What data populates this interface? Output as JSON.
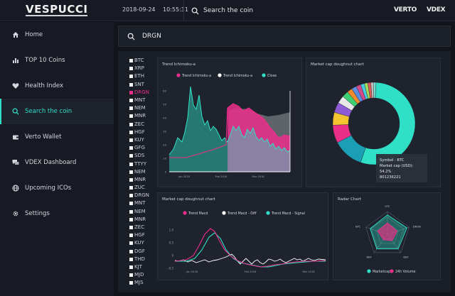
{
  "header": {
    "logo": "VESPUCCI",
    "date": "2018-09-24",
    "time": "10:55:31",
    "search_label": "Search the coin",
    "brands": [
      "VERTO",
      "VDEX"
    ]
  },
  "sidebar": {
    "items": [
      {
        "label": "Home",
        "icon": "home-icon",
        "active": false
      },
      {
        "label": "TOP 10 Coins",
        "icon": "bar-chart-icon",
        "active": false
      },
      {
        "label": "Health Index",
        "icon": "heart-icon",
        "active": false
      },
      {
        "label": "Search the coin",
        "icon": "search-icon",
        "active": true
      },
      {
        "label": "Verto Wallet",
        "icon": "wallet-icon",
        "active": false
      },
      {
        "label": "VDEX Dashboard",
        "icon": "chat-icon",
        "active": false
      },
      {
        "label": "Upcoming ICOs",
        "icon": "globe-icon",
        "active": false
      },
      {
        "label": "Settings",
        "icon": "gear-icon",
        "active": false
      }
    ]
  },
  "search": {
    "value": "DRGN"
  },
  "coins": [
    "BTC",
    "XRP",
    "ETH",
    "SNT",
    "DRGN",
    "MNT",
    "NEM",
    "MNR",
    "ZEC",
    "HGF",
    "KUY",
    "GFG",
    "SDS",
    "TTYY",
    "NEM",
    "MNR",
    "ZUC",
    "DRGN",
    "MNT",
    "NEM",
    "MNR",
    "ZEC",
    "HGF",
    "KUY",
    "DGF",
    "THD",
    "KJT",
    "MJD",
    "MJS"
  ],
  "selected_coin": "DRGN",
  "colors": {
    "accent": "#2fe0c7",
    "pink": "#ec2e8b",
    "white": "#ffffff",
    "bg": "#11141b",
    "panel": "#1f232d"
  },
  "panels": {
    "ichimoku": {
      "title": "Trend Ichimoku-a",
      "legend": [
        "Trend Ichimoku-a",
        "Trend Ichimoku-a",
        "Close"
      ],
      "legend_colors": [
        "#ec2e8b",
        "#ffffff",
        "#2fe0c7"
      ],
      "y_ticks": [
        "60",
        "50",
        "40",
        "30",
        "20",
        "10",
        "0"
      ],
      "x_ticks": [
        "Jan 2018",
        "Feb 2018",
        "Mar 2018"
      ]
    },
    "doughnut": {
      "title": "Market cap doughnut chart",
      "tooltip": {
        "symbol": "Symbol : BTC",
        "cap_label": "Market cap (USD):",
        "pct": "54.2%",
        "value": "801236221"
      },
      "slices": [
        {
          "value": 54.2,
          "color": "#2fe0c7"
        },
        {
          "value": 12,
          "color": "#1a9fb5"
        },
        {
          "value": 7,
          "color": "#ec2e8b"
        },
        {
          "value": 5,
          "color": "#f4c430"
        },
        {
          "value": 4,
          "color": "#8d5ad6"
        },
        {
          "value": 3,
          "color": "#e8e8e8"
        },
        {
          "value": 2.5,
          "color": "#3cd070"
        },
        {
          "value": 2,
          "color": "#f48c2e"
        },
        {
          "value": 2,
          "color": "#5a8de0"
        },
        {
          "value": 1.8,
          "color": "#d64a8a"
        },
        {
          "value": 1.5,
          "color": "#48c9e0"
        },
        {
          "value": 1.3,
          "color": "#a0e05a"
        },
        {
          "value": 1.2,
          "color": "#e05a5a"
        },
        {
          "value": 1,
          "color": "#c0c0c0"
        },
        {
          "value": 1,
          "color": "#7ae0d0"
        }
      ]
    },
    "macd": {
      "title": "Market cap doughnut chart",
      "legend": [
        "Trend Macd",
        "Trend Macd - Diff",
        "Trend Macd - Signal"
      ],
      "legend_colors": [
        "#ec2e8b",
        "#ffffff",
        "#2fe0c7"
      ],
      "y_ticks": [
        "1.0",
        "0.5",
        "0",
        "-0.5"
      ],
      "x_ticks": [
        "Jan 2018",
        "Feb 2018",
        "Mar 2018"
      ]
    },
    "radar": {
      "title": "Radar Chart",
      "axes": [
        "VTC",
        "DRGN",
        "DEF",
        "DEF",
        "BTC"
      ],
      "legend": [
        "Marketcap",
        "24h Volume"
      ],
      "legend_colors": [
        "#2fe0c7",
        "#ec2e8b"
      ],
      "series_a": [
        0.85,
        0.9,
        0.8,
        0.8,
        0.8
      ],
      "series_b": [
        0.5,
        0.45,
        0.35,
        0.3,
        0.45
      ]
    }
  }
}
